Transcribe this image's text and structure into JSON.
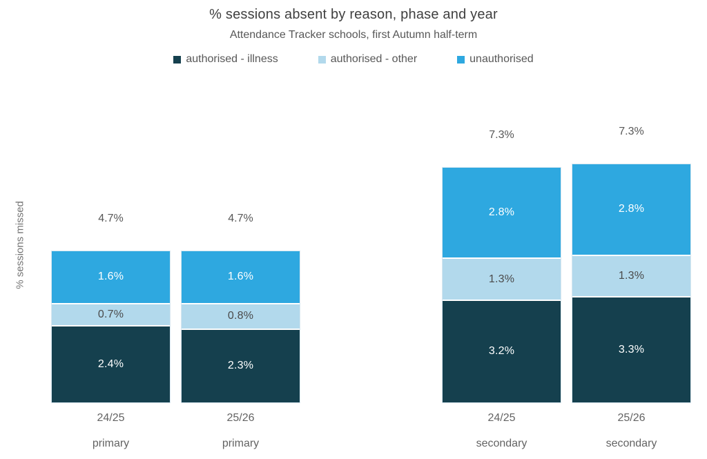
{
  "header": {
    "title": "% sessions absent by reason, phase and year",
    "subtitle": "Attendance Tracker schools, first Autumn half-term"
  },
  "chart_data": {
    "type": "bar",
    "stacked": true,
    "title": "% sessions absent by reason, phase and year",
    "subtitle": "Attendance Tracker schools, first Autumn half-term",
    "ylabel": "% sessions missed",
    "xlabel": "",
    "unit": "%",
    "grid": false,
    "legend_position": "top",
    "ylim": [
      0,
      7.3
    ],
    "categories": [
      "24/25",
      "25/26",
      "24/25",
      "25/26"
    ],
    "phases": [
      "primary",
      "primary",
      "secondary",
      "secondary"
    ],
    "totals": [
      "4.7%",
      "4.7%",
      "7.3%",
      "7.3%"
    ],
    "series": [
      {
        "name": "authorised - illness",
        "color": "#15404E",
        "label_color": "#FFFFFF",
        "values": [
          2.4,
          2.3,
          3.2,
          3.3
        ]
      },
      {
        "name": "authorised - other",
        "color": "#B2D9EC",
        "label_color": "#4A4A4A",
        "values": [
          0.7,
          0.8,
          1.3,
          1.3
        ]
      },
      {
        "name": "unauthorised",
        "color": "#2EA8E0",
        "label_color": "#FFFFFF",
        "values": [
          1.6,
          1.6,
          2.8,
          2.8
        ]
      }
    ],
    "segment_labels": [
      [
        "2.4%",
        "0.7%",
        "1.6%"
      ],
      [
        "2.3%",
        "0.8%",
        "1.6%"
      ],
      [
        "3.2%",
        "1.3%",
        "2.8%"
      ],
      [
        "3.3%",
        "1.3%",
        "2.8%"
      ]
    ]
  }
}
